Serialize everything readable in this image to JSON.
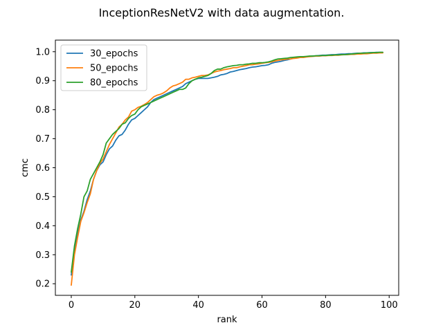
{
  "chart_data": {
    "type": "line",
    "title": "InceptionResNetV2 with data augmentation.",
    "xlabel": "rank",
    "ylabel": "cmc",
    "xlim": [
      -5,
      103
    ],
    "ylim": [
      0.16,
      1.04
    ],
    "xticks": [
      0,
      20,
      40,
      60,
      80,
      100
    ],
    "yticks": [
      0.2,
      0.3,
      0.4,
      0.5,
      0.6,
      0.7,
      0.8,
      0.9,
      1.0
    ],
    "xtick_labels": [
      "0",
      "20",
      "40",
      "60",
      "80",
      "100"
    ],
    "ytick_labels": [
      "0.2",
      "0.3",
      "0.4",
      "0.5",
      "0.6",
      "0.7",
      "0.8",
      "0.9",
      "1.0"
    ],
    "grid": false,
    "legend_position": "upper-left",
    "series": [
      {
        "name": "30_epochs",
        "color": "#1f77b4",
        "x": [
          0,
          1,
          2,
          3,
          4,
          5,
          6,
          7,
          8,
          9,
          10,
          11,
          12,
          13,
          14,
          15,
          16,
          17,
          18,
          19,
          20,
          21,
          22,
          23,
          24,
          25,
          26,
          27,
          28,
          29,
          30,
          31,
          32,
          33,
          34,
          35,
          36,
          37,
          38,
          39,
          40,
          41,
          42,
          43,
          44,
          45,
          46,
          47,
          48,
          49,
          50,
          51,
          52,
          53,
          54,
          55,
          56,
          57,
          58,
          59,
          60,
          61,
          62,
          63,
          64,
          65,
          66,
          67,
          68,
          69,
          70,
          71,
          72,
          73,
          74,
          75,
          76,
          77,
          78,
          79,
          80,
          81,
          82,
          83,
          84,
          85,
          86,
          87,
          88,
          89,
          90,
          91,
          92,
          93,
          94,
          95,
          96,
          97,
          98
        ],
        "y": [
          0.23,
          0.31,
          0.37,
          0.42,
          0.45,
          0.49,
          0.52,
          0.56,
          0.59,
          0.61,
          0.62,
          0.645,
          0.665,
          0.675,
          0.695,
          0.71,
          0.715,
          0.73,
          0.75,
          0.765,
          0.77,
          0.78,
          0.79,
          0.8,
          0.81,
          0.825,
          0.835,
          0.84,
          0.845,
          0.85,
          0.855,
          0.86,
          0.865,
          0.87,
          0.875,
          0.88,
          0.89,
          0.895,
          0.9,
          0.905,
          0.908,
          0.908,
          0.908,
          0.908,
          0.91,
          0.912,
          0.915,
          0.92,
          0.922,
          0.925,
          0.93,
          0.932,
          0.935,
          0.938,
          0.94,
          0.942,
          0.945,
          0.947,
          0.948,
          0.95,
          0.952,
          0.953,
          0.955,
          0.96,
          0.963,
          0.965,
          0.967,
          0.97,
          0.972,
          0.975,
          0.978,
          0.98,
          0.98,
          0.982,
          0.983,
          0.984,
          0.985,
          0.986,
          0.987,
          0.988,
          0.988,
          0.989,
          0.99,
          0.99,
          0.991,
          0.992,
          0.992,
          0.993,
          0.993,
          0.994,
          0.995,
          0.995,
          0.996,
          0.996,
          0.997,
          0.997,
          0.998,
          0.998,
          0.998
        ]
      },
      {
        "name": "50_epochs",
        "color": "#ff7f0e",
        "x": [
          0,
          1,
          2,
          3,
          4,
          5,
          6,
          7,
          8,
          9,
          10,
          11,
          12,
          13,
          14,
          15,
          16,
          17,
          18,
          19,
          20,
          21,
          22,
          23,
          24,
          25,
          26,
          27,
          28,
          29,
          30,
          31,
          32,
          33,
          34,
          35,
          36,
          37,
          38,
          39,
          40,
          41,
          42,
          43,
          44,
          45,
          46,
          47,
          48,
          49,
          50,
          51,
          52,
          53,
          54,
          55,
          56,
          57,
          58,
          59,
          60,
          61,
          62,
          63,
          64,
          65,
          66,
          67,
          68,
          69,
          70,
          71,
          72,
          73,
          74,
          75,
          76,
          77,
          78,
          79,
          80,
          81,
          82,
          83,
          84,
          85,
          86,
          87,
          88,
          89,
          90,
          91,
          92,
          93,
          94,
          95,
          96,
          97,
          98
        ],
        "y": [
          0.195,
          0.3,
          0.36,
          0.415,
          0.445,
          0.48,
          0.51,
          0.56,
          0.59,
          0.615,
          0.63,
          0.655,
          0.68,
          0.7,
          0.72,
          0.74,
          0.75,
          0.765,
          0.775,
          0.795,
          0.8,
          0.808,
          0.812,
          0.818,
          0.825,
          0.835,
          0.845,
          0.85,
          0.853,
          0.858,
          0.865,
          0.875,
          0.882,
          0.885,
          0.89,
          0.895,
          0.905,
          0.905,
          0.91,
          0.912,
          0.915,
          0.918,
          0.918,
          0.92,
          0.925,
          0.93,
          0.933,
          0.935,
          0.938,
          0.94,
          0.942,
          0.945,
          0.945,
          0.948,
          0.95,
          0.952,
          0.955,
          0.955,
          0.957,
          0.958,
          0.96,
          0.962,
          0.963,
          0.965,
          0.968,
          0.97,
          0.972,
          0.973,
          0.975,
          0.975,
          0.977,
          0.978,
          0.98,
          0.98,
          0.982,
          0.983,
          0.984,
          0.985,
          0.985,
          0.986,
          0.986,
          0.987,
          0.987,
          0.988,
          0.988,
          0.989,
          0.99,
          0.99,
          0.991,
          0.991,
          0.992,
          0.992,
          0.993,
          0.993,
          0.994,
          0.995,
          0.995,
          0.996,
          0.996
        ]
      },
      {
        "name": "80_epochs",
        "color": "#2ca02c",
        "x": [
          0,
          1,
          2,
          3,
          4,
          5,
          6,
          7,
          8,
          9,
          10,
          11,
          12,
          13,
          14,
          15,
          16,
          17,
          18,
          19,
          20,
          21,
          22,
          23,
          24,
          25,
          26,
          27,
          28,
          29,
          30,
          31,
          32,
          33,
          34,
          35,
          36,
          37,
          38,
          39,
          40,
          41,
          42,
          43,
          44,
          45,
          46,
          47,
          48,
          49,
          50,
          51,
          52,
          53,
          54,
          55,
          56,
          57,
          58,
          59,
          60,
          61,
          62,
          63,
          64,
          65,
          66,
          67,
          68,
          69,
          70,
          71,
          72,
          73,
          74,
          75,
          76,
          77,
          78,
          79,
          80,
          81,
          82,
          83,
          84,
          85,
          86,
          87,
          88,
          89,
          90,
          91,
          92,
          93,
          94,
          95,
          96,
          97,
          98
        ],
        "y": [
          0.24,
          0.33,
          0.39,
          0.44,
          0.5,
          0.52,
          0.56,
          0.58,
          0.6,
          0.62,
          0.645,
          0.685,
          0.7,
          0.715,
          0.725,
          0.735,
          0.75,
          0.755,
          0.77,
          0.78,
          0.785,
          0.8,
          0.81,
          0.815,
          0.82,
          0.825,
          0.83,
          0.835,
          0.84,
          0.845,
          0.85,
          0.855,
          0.86,
          0.865,
          0.87,
          0.87,
          0.875,
          0.89,
          0.9,
          0.905,
          0.91,
          0.912,
          0.915,
          0.918,
          0.925,
          0.935,
          0.94,
          0.94,
          0.945,
          0.948,
          0.95,
          0.952,
          0.953,
          0.955,
          0.955,
          0.957,
          0.958,
          0.96,
          0.96,
          0.962,
          0.962,
          0.963,
          0.965,
          0.968,
          0.972,
          0.975,
          0.976,
          0.977,
          0.978,
          0.98,
          0.981,
          0.982,
          0.983,
          0.983,
          0.984,
          0.985,
          0.985,
          0.986,
          0.986,
          0.987,
          0.987,
          0.988,
          0.988,
          0.989,
          0.989,
          0.99,
          0.99,
          0.991,
          0.992,
          0.993,
          0.994,
          0.995,
          0.995,
          0.996,
          0.996,
          0.997,
          0.997,
          0.998,
          0.998
        ]
      }
    ]
  }
}
